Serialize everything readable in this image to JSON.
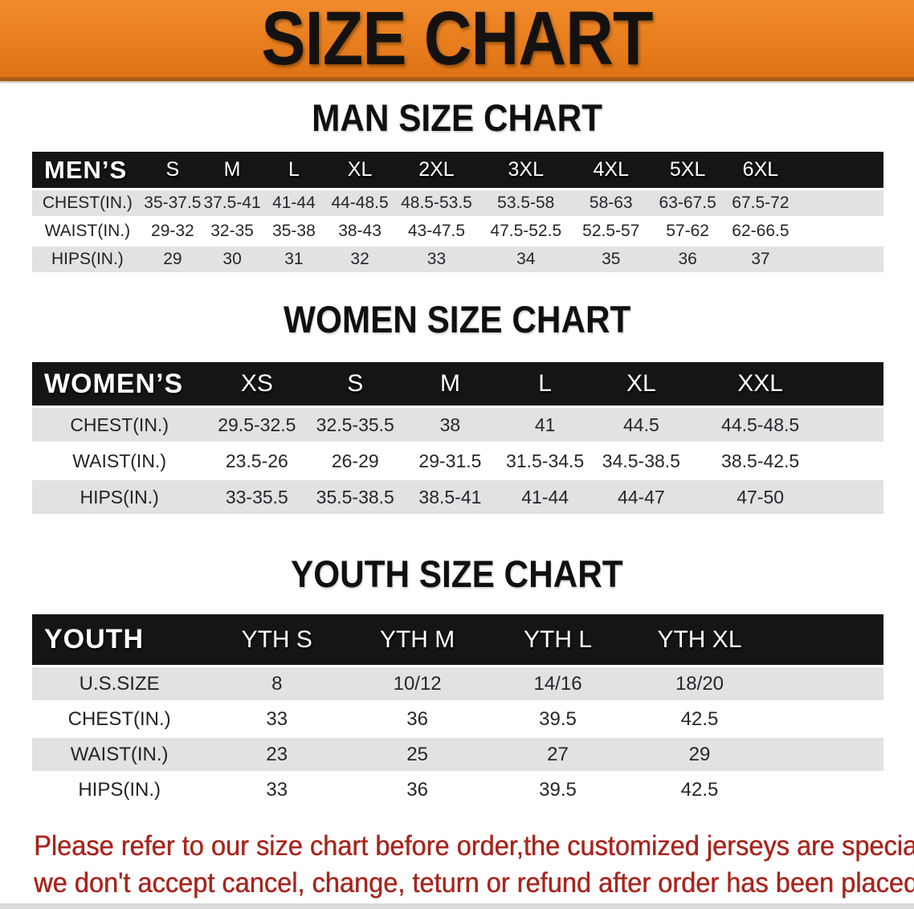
{
  "banner": {
    "title": "SIZE CHART",
    "bg_color": "#e87e1e",
    "text_color": "#141210"
  },
  "sections": [
    {
      "heading": "MAN SIZE CHART",
      "table": {
        "header_label": "MEN’S",
        "columns": [
          "S",
          "M",
          "L",
          "XL",
          "2XL",
          "3XL",
          "4XL",
          "5XL",
          "6XL"
        ],
        "rows": [
          {
            "label": "CHEST(IN.)",
            "values": [
              "35-37.5",
              "37.5-41",
              "41-44",
              "44-48.5",
              "48.5-53.5",
              "53.5-58",
              "58-63",
              "63-67.5",
              "67.5-72"
            ]
          },
          {
            "label": "WAIST(IN.)",
            "values": [
              "29-32",
              "32-35",
              "35-38",
              "38-43",
              "43-47.5",
              "47.5-52.5",
              "52.5-57",
              "57-62",
              "62-66.5"
            ]
          },
          {
            "label": "HIPS(IN.)",
            "values": [
              "29",
              "30",
              "31",
              "32",
              "33",
              "34",
              "35",
              "36",
              "37"
            ]
          }
        ]
      }
    },
    {
      "heading": "WOMEN SIZE CHART",
      "table": {
        "header_label": "WOMEN’S",
        "columns": [
          "XS",
          "S",
          "M",
          "L",
          "XL",
          "XXL"
        ],
        "rows": [
          {
            "label": "CHEST(IN.)",
            "values": [
              "29.5-32.5",
              "32.5-35.5",
              "38",
              "41",
              "44.5",
              "44.5-48.5"
            ]
          },
          {
            "label": "WAIST(IN.)",
            "values": [
              "23.5-26",
              "26-29",
              "29-31.5",
              "31.5-34.5",
              "34.5-38.5",
              "38.5-42.5"
            ]
          },
          {
            "label": "HIPS(IN.)",
            "values": [
              "33-35.5",
              "35.5-38.5",
              "38.5-41",
              "41-44",
              "44-47",
              "47-50"
            ]
          }
        ]
      }
    },
    {
      "heading": "YOUTH SIZE CHART",
      "table": {
        "header_label": "YOUTH",
        "columns": [
          "YTH S",
          "YTH M",
          "YTH L",
          "YTH XL"
        ],
        "rows": [
          {
            "label": "U.S.SIZE",
            "values": [
              "8",
              "10/12",
              "14/16",
              "18/20"
            ]
          },
          {
            "label": "CHEST(IN.)",
            "values": [
              "33",
              "36",
              "39.5",
              "42.5"
            ]
          },
          {
            "label": "WAIST(IN.)",
            "values": [
              "23",
              "25",
              "27",
              "29"
            ]
          },
          {
            "label": "HIPS(IN.)",
            "values": [
              "33",
              "36",
              "39.5",
              "42.5"
            ]
          }
        ]
      }
    }
  ],
  "disclaimer": {
    "line1": "Please refer to our size chart before order,the customized jerseys are special products,",
    "line2": "we don't accept cancel, change, teturn or refund after order has been placed!",
    "color": "#a8241c"
  },
  "colors": {
    "banner_orange": "#e87e1e",
    "banner_border": "#a95b11",
    "table_header_black": "#171513",
    "row_gray": "#e2e2e4",
    "row_white": "#ffffff",
    "disclaimer_red": "#a8241c"
  }
}
